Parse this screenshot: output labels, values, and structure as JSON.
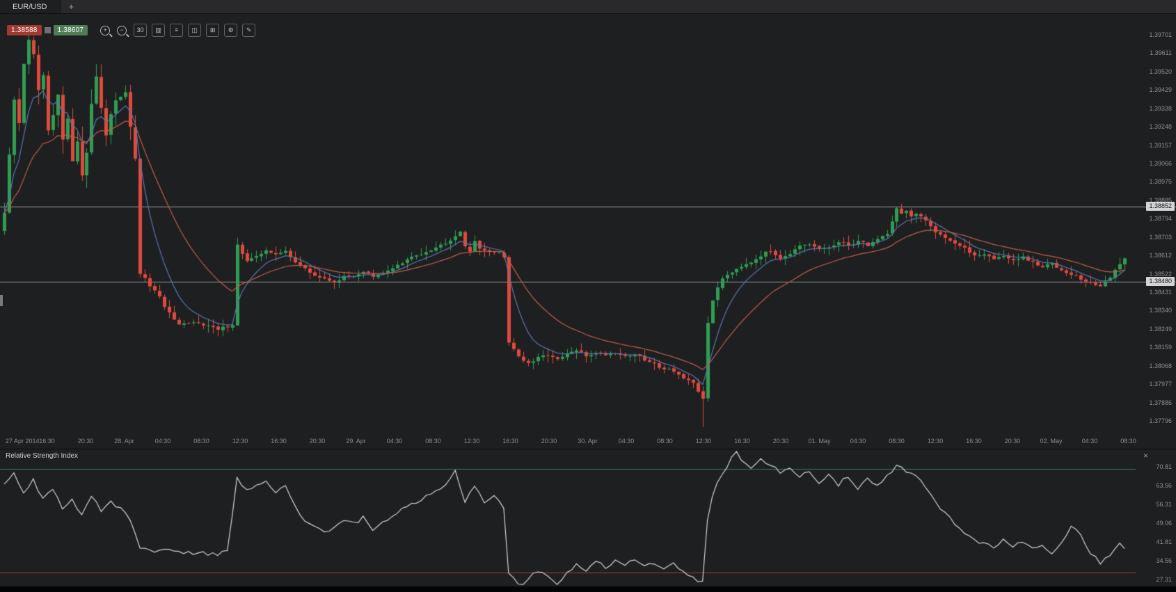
{
  "window": {
    "tab": "EUR/USD",
    "new_tab": "+"
  },
  "quote": {
    "bid": "1.38588",
    "ask": "1.38607"
  },
  "toolbar": {
    "buttons": [
      {
        "name": "zoom-in-button",
        "glyph": "+",
        "style": "mag"
      },
      {
        "name": "zoom-out-button",
        "glyph": "−",
        "style": "mag"
      },
      {
        "name": "timeframe-button",
        "glyph": "30",
        "style": "boxed"
      },
      {
        "name": "chart-type-button",
        "glyph": "▥",
        "style": "boxed"
      },
      {
        "name": "indicators-button",
        "glyph": "≡",
        "style": "boxed"
      },
      {
        "name": "compare-button",
        "glyph": "◫",
        "style": "boxed"
      },
      {
        "name": "grid-button",
        "glyph": "⊞",
        "style": "boxed"
      },
      {
        "name": "settings-button",
        "glyph": "⚙",
        "style": "boxed"
      },
      {
        "name": "draw-button",
        "glyph": "✎",
        "style": "boxed"
      }
    ]
  },
  "price_axis": {
    "labels": [
      "1.39701",
      "1.39611",
      "1.39520",
      "1.39429",
      "1.39338",
      "1.39248",
      "1.39157",
      "1.39066",
      "1.38975",
      "1.38885",
      "1.38794",
      "1.38703",
      "1.38612",
      "1.38522",
      "1.38431",
      "1.38340",
      "1.38249",
      "1.38159",
      "1.38068",
      "1.37977",
      "1.37886",
      "1.37796"
    ]
  },
  "time_axis": {
    "labels": [
      "27 Apr 2014",
      "16:30",
      "20:30",
      "28. Apr",
      "04:30",
      "08:30",
      "12:30",
      "16:30",
      "20:30",
      "29. Apr",
      "04:30",
      "08:30",
      "12:30",
      "16:30",
      "20:30",
      "30. Apr",
      "04:30",
      "08:30",
      "12:30",
      "16:30",
      "20:30",
      "01. May",
      "04:30",
      "08:30",
      "12:30",
      "16:30",
      "20:30",
      "02. May",
      "04:30",
      "08:30"
    ]
  },
  "rsi": {
    "title": "Relative Strength Index",
    "close_glyph": "×",
    "axis_labels": [
      "70.81",
      "63.56",
      "56.31",
      "49.06",
      "41.81",
      "34.56",
      "27.31"
    ],
    "upper_level": 70,
    "lower_level": 30
  },
  "chart_data": {
    "type": "candlestick",
    "symbol": "EUR/USD",
    "bars": 232,
    "price_top_label": 1.39701,
    "price_bottom_label": 1.37796,
    "horizontal_lines": [
      {
        "value": 1.38852,
        "label": "1.38852"
      },
      {
        "value": 1.3848,
        "label": "1.38480"
      }
    ],
    "colors": {
      "background": "#1e1f21",
      "up": "#2f9e53",
      "down": "#df4a3d",
      "ma_fast": "#5878b0",
      "ma_slow": "#c05f4c",
      "hline": "#9b9b9e",
      "rsi_line": "#d6d6d8",
      "rsi_upper": "#3c7a5e",
      "rsi_lower": "#9c4040"
    },
    "overlays": [
      {
        "name": "ma-fast",
        "period": 7
      },
      {
        "name": "ma-slow",
        "period": 21
      }
    ],
    "close_anchors": [
      [
        0,
        1.3882
      ],
      [
        1,
        1.391
      ],
      [
        2,
        1.3938
      ],
      [
        3,
        1.3926
      ],
      [
        4,
        1.3956
      ],
      [
        5,
        1.3968
      ],
      [
        6,
        1.396
      ],
      [
        7,
        1.3942
      ],
      [
        8,
        1.395
      ],
      [
        9,
        1.3922
      ],
      [
        10,
        1.393
      ],
      [
        11,
        1.394
      ],
      [
        12,
        1.3918
      ],
      [
        13,
        1.3928
      ],
      [
        14,
        1.3908
      ],
      [
        15,
        1.3918
      ],
      [
        16,
        1.39
      ],
      [
        17,
        1.3912
      ],
      [
        18,
        1.3936
      ],
      [
        19,
        1.395
      ],
      [
        20,
        1.3934
      ],
      [
        21,
        1.392
      ],
      [
        22,
        1.393
      ],
      [
        23,
        1.3938
      ],
      [
        25,
        1.3942
      ],
      [
        27,
        1.3908
      ],
      [
        28,
        1.3852
      ],
      [
        30,
        1.3846
      ],
      [
        32,
        1.384
      ],
      [
        34,
        1.3832
      ],
      [
        36,
        1.3826
      ],
      [
        40,
        1.3828
      ],
      [
        44,
        1.3824
      ],
      [
        47,
        1.3827
      ],
      [
        48,
        1.3866
      ],
      [
        50,
        1.3858
      ],
      [
        52,
        1.386
      ],
      [
        54,
        1.3864
      ],
      [
        56,
        1.3861
      ],
      [
        58,
        1.3863
      ],
      [
        60,
        1.3858
      ],
      [
        62,
        1.3854
      ],
      [
        64,
        1.3851
      ],
      [
        66,
        1.3849
      ],
      [
        68,
        1.3848
      ],
      [
        70,
        1.385
      ],
      [
        72,
        1.3851
      ],
      [
        74,
        1.3853
      ],
      [
        76,
        1.385
      ],
      [
        78,
        1.3852
      ],
      [
        80,
        1.3855
      ],
      [
        82,
        1.3857
      ],
      [
        84,
        1.386
      ],
      [
        86,
        1.3862
      ],
      [
        88,
        1.3864
      ],
      [
        90,
        1.3866
      ],
      [
        92,
        1.3869
      ],
      [
        94,
        1.3873
      ],
      [
        95,
        1.3866
      ],
      [
        96,
        1.3862
      ],
      [
        97,
        1.3868
      ],
      [
        98,
        1.3865
      ],
      [
        100,
        1.3862
      ],
      [
        102,
        1.3863
      ],
      [
        103,
        1.386
      ],
      [
        104,
        1.3818
      ],
      [
        105,
        1.3815
      ],
      [
        106,
        1.3811
      ],
      [
        108,
        1.3807
      ],
      [
        110,
        1.381
      ],
      [
        112,
        1.3812
      ],
      [
        114,
        1.3809
      ],
      [
        116,
        1.3812
      ],
      [
        118,
        1.3814
      ],
      [
        120,
        1.3811
      ],
      [
        122,
        1.3813
      ],
      [
        124,
        1.3812
      ],
      [
        126,
        1.3813
      ],
      [
        128,
        1.3811
      ],
      [
        130,
        1.3812
      ],
      [
        132,
        1.3809
      ],
      [
        134,
        1.3807
      ],
      [
        136,
        1.3805
      ],
      [
        138,
        1.3804
      ],
      [
        140,
        1.38
      ],
      [
        142,
        1.3797
      ],
      [
        144,
        1.379
      ],
      [
        145,
        1.3828
      ],
      [
        146,
        1.3838
      ],
      [
        147,
        1.3845
      ],
      [
        148,
        1.385
      ],
      [
        150,
        1.3853
      ],
      [
        152,
        1.3856
      ],
      [
        154,
        1.3858
      ],
      [
        156,
        1.3861
      ],
      [
        158,
        1.3863
      ],
      [
        160,
        1.386
      ],
      [
        162,
        1.3862
      ],
      [
        164,
        1.3865
      ],
      [
        166,
        1.3866
      ],
      [
        168,
        1.3864
      ],
      [
        170,
        1.3865
      ],
      [
        172,
        1.3867
      ],
      [
        174,
        1.3866
      ],
      [
        176,
        1.3868
      ],
      [
        178,
        1.3866
      ],
      [
        180,
        1.3869
      ],
      [
        182,
        1.3872
      ],
      [
        183,
        1.3878
      ],
      [
        184,
        1.3884
      ],
      [
        185,
        1.3882
      ],
      [
        186,
        1.3883
      ],
      [
        187,
        1.388
      ],
      [
        188,
        1.3881
      ],
      [
        190,
        1.3878
      ],
      [
        192,
        1.3873
      ],
      [
        194,
        1.387
      ],
      [
        196,
        1.3867
      ],
      [
        198,
        1.3864
      ],
      [
        200,
        1.3861
      ],
      [
        202,
        1.3862
      ],
      [
        204,
        1.3859
      ],
      [
        206,
        1.3861
      ],
      [
        208,
        1.3858
      ],
      [
        210,
        1.386
      ],
      [
        212,
        1.3857
      ],
      [
        214,
        1.3855
      ],
      [
        216,
        1.3857
      ],
      [
        218,
        1.3854
      ],
      [
        220,
        1.3852
      ],
      [
        222,
        1.3849
      ],
      [
        224,
        1.3847
      ],
      [
        226,
        1.3846
      ],
      [
        228,
        1.385
      ],
      [
        230,
        1.3856
      ],
      [
        231,
        1.386
      ]
    ],
    "spike": {
      "bar": 144,
      "low": 1.3776
    },
    "rsi_anchors": [
      [
        0,
        64
      ],
      [
        2,
        68
      ],
      [
        4,
        60
      ],
      [
        6,
        66
      ],
      [
        8,
        58
      ],
      [
        10,
        62
      ],
      [
        12,
        55
      ],
      [
        14,
        58
      ],
      [
        16,
        52
      ],
      [
        18,
        60
      ],
      [
        20,
        54
      ],
      [
        22,
        57
      ],
      [
        24,
        55
      ],
      [
        26,
        50
      ],
      [
        28,
        40
      ],
      [
        31,
        38
      ],
      [
        34,
        39
      ],
      [
        37,
        37
      ],
      [
        40,
        38
      ],
      [
        43,
        37
      ],
      [
        46,
        38
      ],
      [
        48,
        66
      ],
      [
        50,
        62
      ],
      [
        52,
        64
      ],
      [
        54,
        66
      ],
      [
        56,
        61
      ],
      [
        58,
        63
      ],
      [
        60,
        55
      ],
      [
        62,
        50
      ],
      [
        64,
        48
      ],
      [
        66,
        46
      ],
      [
        68,
        47
      ],
      [
        70,
        50
      ],
      [
        72,
        49
      ],
      [
        74,
        51
      ],
      [
        76,
        47
      ],
      [
        78,
        49
      ],
      [
        80,
        52
      ],
      [
        82,
        54
      ],
      [
        84,
        56
      ],
      [
        86,
        58
      ],
      [
        88,
        60
      ],
      [
        90,
        62
      ],
      [
        92,
        66
      ],
      [
        93,
        70
      ],
      [
        95,
        57
      ],
      [
        97,
        64
      ],
      [
        99,
        57
      ],
      [
        101,
        60
      ],
      [
        103,
        55
      ],
      [
        104,
        30
      ],
      [
        106,
        25
      ],
      [
        108,
        27
      ],
      [
        110,
        31
      ],
      [
        112,
        28
      ],
      [
        114,
        26
      ],
      [
        116,
        30
      ],
      [
        118,
        33
      ],
      [
        120,
        31
      ],
      [
        122,
        34
      ],
      [
        124,
        32
      ],
      [
        126,
        35
      ],
      [
        128,
        33
      ],
      [
        130,
        35
      ],
      [
        132,
        33
      ],
      [
        134,
        34
      ],
      [
        136,
        32
      ],
      [
        138,
        33
      ],
      [
        140,
        30
      ],
      [
        142,
        28
      ],
      [
        144,
        26
      ],
      [
        145,
        50
      ],
      [
        146,
        60
      ],
      [
        148,
        68
      ],
      [
        150,
        74
      ],
      [
        151,
        77
      ],
      [
        152,
        73
      ],
      [
        154,
        71
      ],
      [
        156,
        74
      ],
      [
        158,
        71
      ],
      [
        160,
        69
      ],
      [
        162,
        71
      ],
      [
        164,
        67
      ],
      [
        166,
        69
      ],
      [
        168,
        65
      ],
      [
        170,
        68
      ],
      [
        172,
        64
      ],
      [
        174,
        67
      ],
      [
        176,
        62
      ],
      [
        178,
        66
      ],
      [
        180,
        63
      ],
      [
        182,
        67
      ],
      [
        184,
        71
      ],
      [
        186,
        69
      ],
      [
        188,
        67
      ],
      [
        190,
        63
      ],
      [
        192,
        57
      ],
      [
        194,
        53
      ],
      [
        196,
        49
      ],
      [
        198,
        45
      ],
      [
        200,
        43
      ],
      [
        202,
        41
      ],
      [
        204,
        40
      ],
      [
        206,
        43
      ],
      [
        208,
        40
      ],
      [
        210,
        42
      ],
      [
        212,
        39
      ],
      [
        214,
        41
      ],
      [
        216,
        37
      ],
      [
        218,
        42
      ],
      [
        220,
        48
      ],
      [
        222,
        44
      ],
      [
        224,
        37
      ],
      [
        226,
        34
      ],
      [
        228,
        37
      ],
      [
        230,
        42
      ],
      [
        231,
        39
      ]
    ]
  }
}
